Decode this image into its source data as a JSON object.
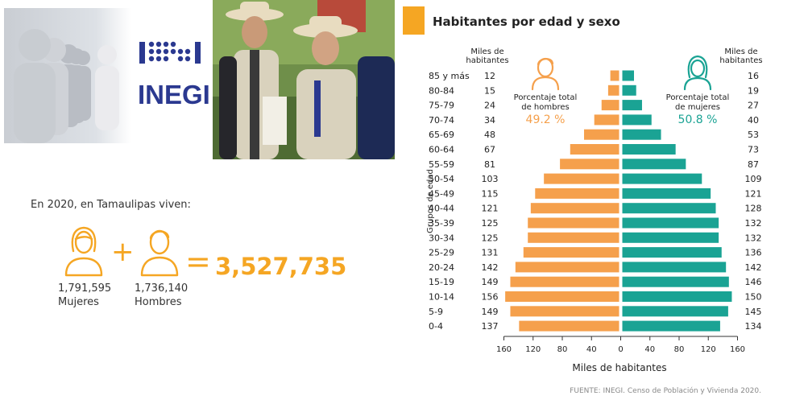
{
  "brand": {
    "logo_text": "INEGI"
  },
  "summary": {
    "intro": "En 2020, en Tamaulipas viven:",
    "women_value": "1,791,595",
    "women_label": "Mujeres",
    "men_value": "1,736,140",
    "men_label": "Hombres",
    "plus": "+",
    "equals": "=",
    "total": "3,527,735"
  },
  "colors": {
    "men": "#f5a04c",
    "women": "#1aa394",
    "accent": "#f5a623",
    "text": "#222222"
  },
  "chart_data": {
    "type": "bar",
    "orientation": "horizontal",
    "subtype": "population-pyramid",
    "title": "Habitantes por edad y sexo",
    "ylabel": "Grupos de edad",
    "xlabel": "Miles de habitantes",
    "unit_label_left": "Miles de habitantes",
    "unit_label_right": "Miles de habitantes",
    "categories": [
      "85 y más",
      "80-84",
      "75-79",
      "70-74",
      "65-69",
      "60-64",
      "55-59",
      "50-54",
      "45-49",
      "40-44",
      "35-39",
      "30-34",
      "25-29",
      "20-24",
      "15-19",
      "10-14",
      "5-9",
      "0-4"
    ],
    "series": [
      {
        "name": "Hombres",
        "side": "left",
        "color": "#f5a04c",
        "values": [
          12,
          15,
          24,
          34,
          48,
          67,
          81,
          103,
          115,
          121,
          125,
          125,
          131,
          142,
          149,
          156,
          149,
          137
        ]
      },
      {
        "name": "Mujeres",
        "side": "right",
        "color": "#1aa394",
        "values": [
          16,
          19,
          27,
          40,
          53,
          73,
          87,
          109,
          121,
          128,
          132,
          132,
          136,
          142,
          146,
          150,
          145,
          134
        ]
      }
    ],
    "xlim": [
      -160,
      160
    ],
    "xticks": [
      -160,
      -120,
      -80,
      -40,
      0,
      40,
      80,
      120,
      160
    ],
    "xtick_labels": [
      "160",
      "120",
      "80",
      "40",
      "0",
      "40",
      "80",
      "120",
      "160"
    ],
    "annotations": {
      "men_label": "Porcentaje total de hombres",
      "men_pct": "49.2 %",
      "women_label": "Porcentaje total de mujeres",
      "women_pct": "50.8 %"
    },
    "grid": false,
    "source": "FUENTE: INEGI. Censo de Población y Vivienda 2020."
  }
}
